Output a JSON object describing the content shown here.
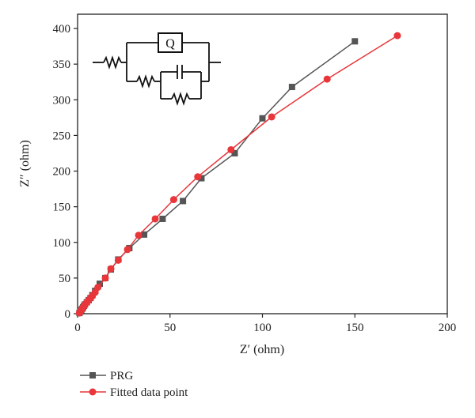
{
  "chart_data": {
    "type": "scatter",
    "xlabel": "Z′ (ohm)",
    "ylabel": "Z″ (ohm)",
    "xlim": [
      0,
      200
    ],
    "ylim": [
      0,
      420
    ],
    "x_ticks": [
      0,
      50,
      100,
      150,
      200
    ],
    "y_ticks": [
      0,
      50,
      100,
      150,
      200,
      250,
      300,
      350,
      400
    ],
    "legend_position": "bottom-left",
    "series": [
      {
        "name": "PRG",
        "color": "#555555",
        "marker": "square",
        "x": [
          1,
          1.5,
          2,
          2.5,
          3,
          3.5,
          4,
          5,
          6,
          7,
          8,
          9.5,
          12,
          15,
          18,
          22,
          28,
          36,
          46,
          57,
          67,
          85,
          100,
          116,
          150
        ],
        "y": [
          1,
          3,
          5,
          7,
          9,
          11,
          13,
          16,
          19,
          22,
          26,
          32,
          42,
          50,
          62,
          76,
          92,
          111,
          133,
          158,
          190,
          225,
          274,
          318,
          382
        ]
      },
      {
        "name": "Fitted data point",
        "color": "#e8363a",
        "marker": "circle",
        "x": [
          1,
          1.5,
          2,
          2.5,
          3,
          3.5,
          4,
          5,
          6,
          7,
          8,
          9.5,
          11,
          15,
          18,
          22,
          27,
          33,
          42,
          52,
          65,
          83,
          105,
          135,
          173
        ],
        "y": [
          1,
          3,
          5,
          7,
          9,
          11,
          13,
          16,
          19,
          22,
          25,
          30,
          37,
          50,
          63,
          75,
          90,
          110,
          133,
          160,
          192,
          230,
          276,
          329,
          390
        ]
      }
    ],
    "inset": {
      "element_label": "Q"
    }
  }
}
